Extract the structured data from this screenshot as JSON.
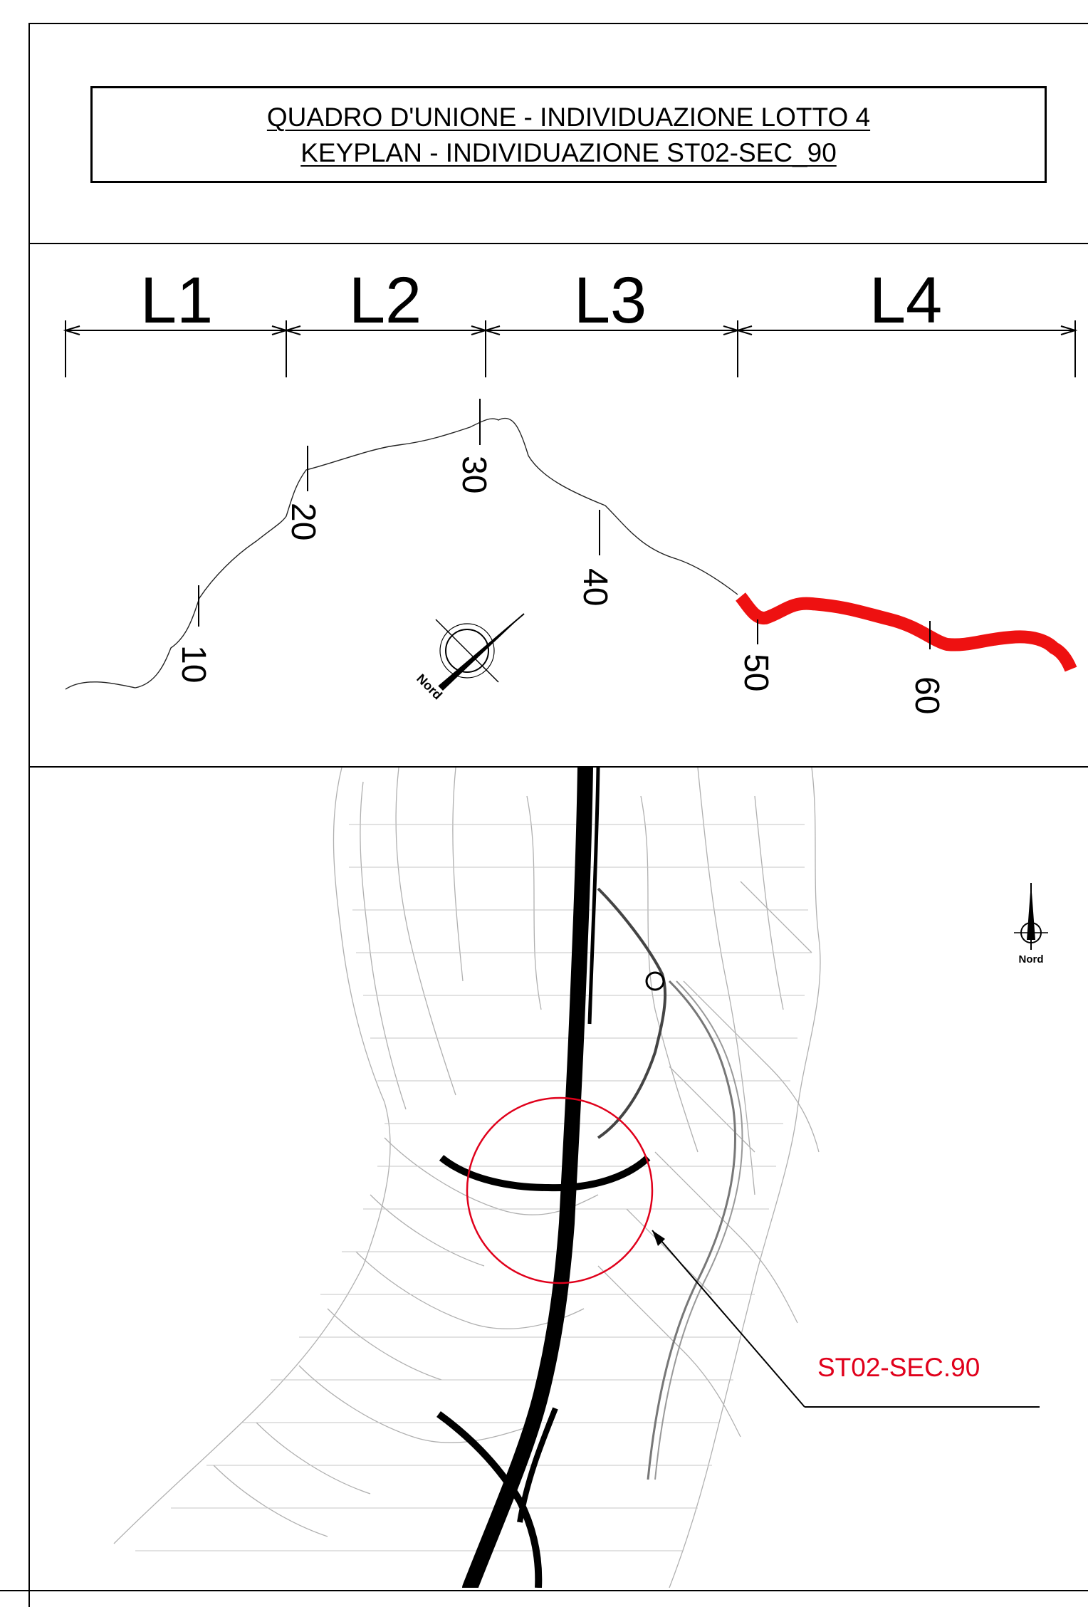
{
  "title": {
    "line1": "QUADRO D'UNIONE - INDIVIDUAZIONE LOTTO 4",
    "line2": "KEYPLAN - INDIVIDUAZIONE ST02-SEC_90"
  },
  "lotti": [
    {
      "id": "L1",
      "label": "L1"
    },
    {
      "id": "L2",
      "label": "L2"
    },
    {
      "id": "L3",
      "label": "L3"
    },
    {
      "id": "L4",
      "label": "L4",
      "highlighted": true
    }
  ],
  "chainage_marks": [
    "10",
    "20",
    "30",
    "40",
    "50",
    "60"
  ],
  "north_arrow_label": "Nord",
  "map": {
    "north_arrow_label": "Nord",
    "callout_label": "ST02-SEC.90",
    "highlight_color": "#e0001b",
    "road_color": "#000000",
    "contour_color": "#b0b0b0"
  },
  "colors": {
    "lotto4_route": "#ee1111",
    "route": "#000000",
    "callout": "#e0001b"
  }
}
